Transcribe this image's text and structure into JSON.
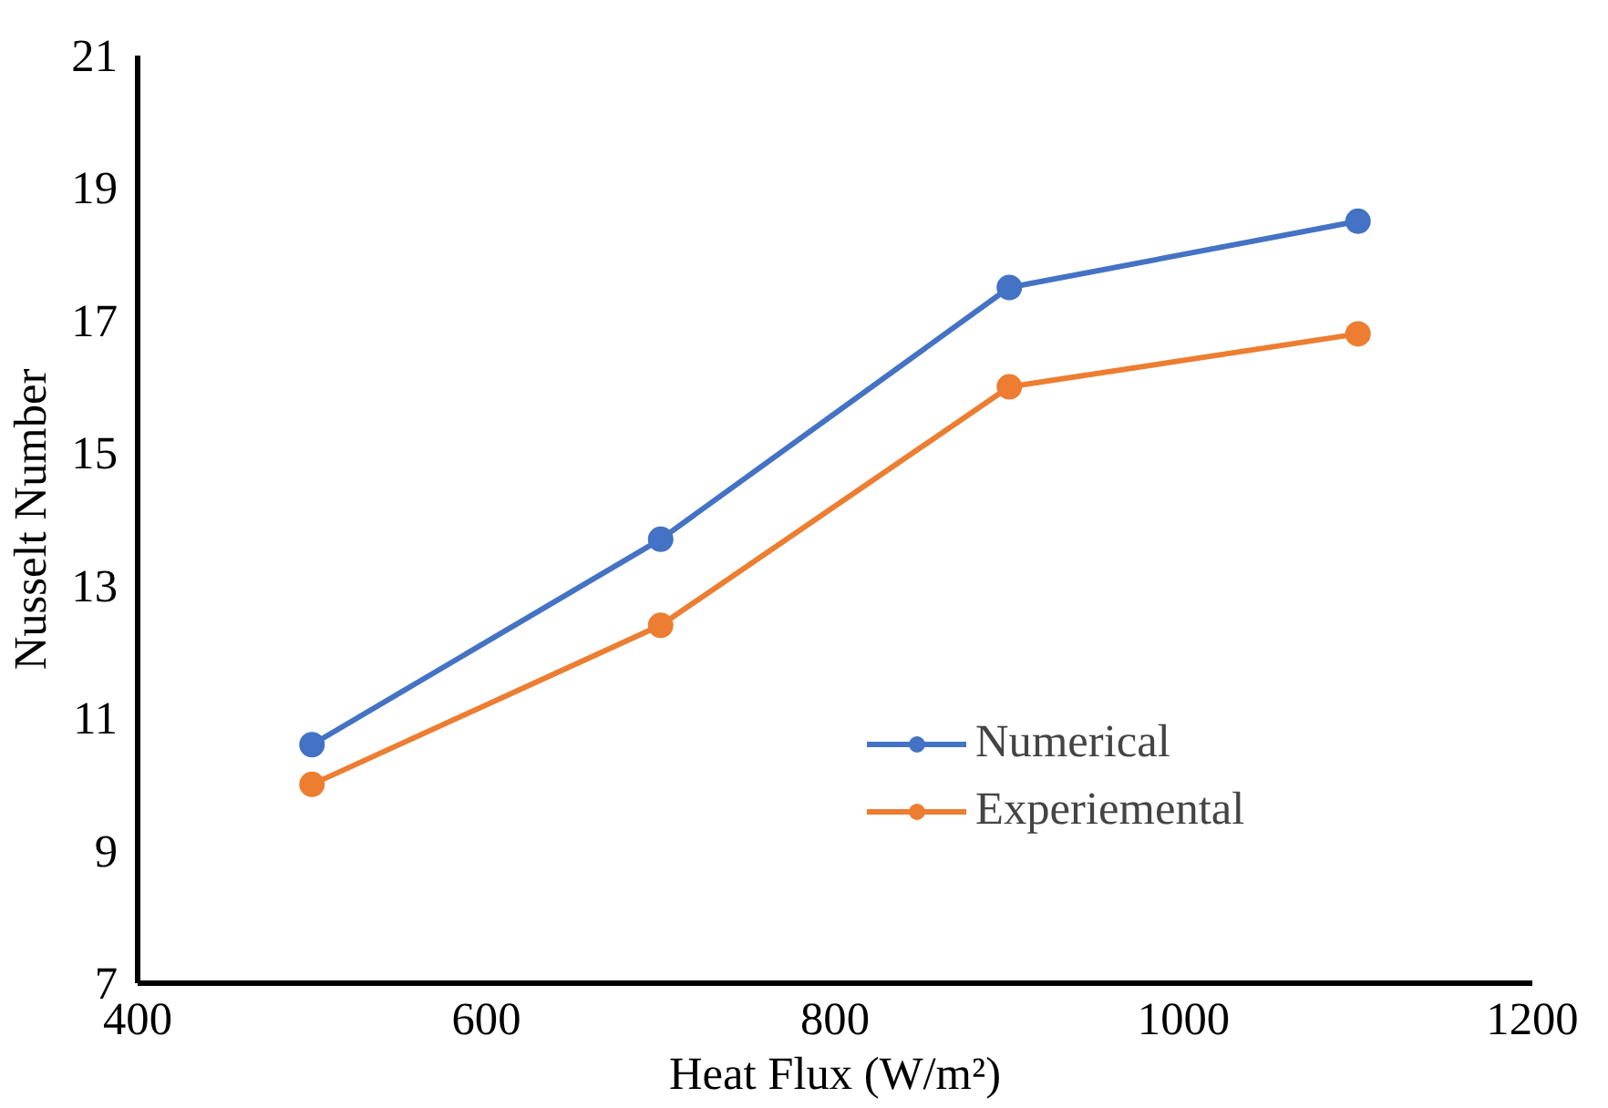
{
  "chart_data": {
    "type": "line",
    "xlabel": "Heat Flux (W/m²)",
    "ylabel": "Nusselt Number",
    "x": [
      500,
      700,
      900,
      1100
    ],
    "series": [
      {
        "name": "Numerical",
        "color": "#4472c4",
        "values": [
          10.6,
          13.7,
          17.5,
          18.5
        ]
      },
      {
        "name": "Experiemental",
        "color": "#ed7d31",
        "values": [
          10.0,
          12.4,
          16.0,
          16.8
        ]
      }
    ],
    "xlim": [
      400,
      1200
    ],
    "xticks": [
      400,
      600,
      800,
      1000,
      1200
    ],
    "ylim": [
      7,
      21
    ],
    "yticks": [
      7,
      9,
      11,
      13,
      15,
      17,
      19,
      21
    ],
    "grid": false,
    "legend": "bottom right",
    "marker": "circle",
    "line_style": "solid"
  }
}
